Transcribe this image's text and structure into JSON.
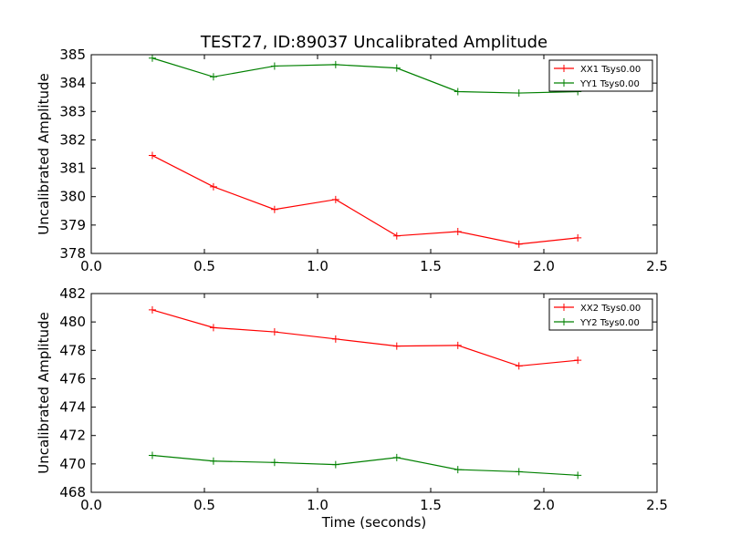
{
  "chart_data": [
    {
      "type": "line",
      "title": "TEST27, ID:89037 Uncalibrated Amplitude",
      "xlabel": "",
      "ylabel": "Uncalibrated Amplitude",
      "xlim": [
        0.0,
        2.5
      ],
      "ylim": [
        378,
        385
      ],
      "xticks": [
        "0.0",
        "0.5",
        "1.0",
        "1.5",
        "2.0",
        "2.5"
      ],
      "yticks": [
        "378",
        "379",
        "380",
        "381",
        "382",
        "383",
        "384",
        "385"
      ],
      "x": [
        0.27,
        0.54,
        0.81,
        1.08,
        1.35,
        1.62,
        1.89,
        2.15
      ],
      "legend_position": "top-right",
      "series": [
        {
          "name": "XX1 Tsys0.00",
          "color": "#ff0000",
          "values": [
            381.45,
            380.35,
            379.55,
            379.9,
            378.62,
            378.77,
            378.33,
            378.55
          ]
        },
        {
          "name": "YY1 Tsys0.00",
          "color": "#008000",
          "values": [
            384.88,
            384.22,
            384.6,
            384.65,
            384.53,
            383.7,
            383.65,
            383.7
          ]
        }
      ]
    },
    {
      "type": "line",
      "title": "",
      "xlabel": "Time (seconds)",
      "ylabel": "Uncalibrated Amplitude",
      "xlim": [
        0.0,
        2.5
      ],
      "ylim": [
        468,
        482
      ],
      "xticks": [
        "0.0",
        "0.5",
        "1.0",
        "1.5",
        "2.0",
        "2.5"
      ],
      "yticks": [
        "468",
        "470",
        "472",
        "474",
        "476",
        "478",
        "480",
        "482"
      ],
      "x": [
        0.27,
        0.54,
        0.81,
        1.08,
        1.35,
        1.62,
        1.89,
        2.15
      ],
      "legend_position": "top-right",
      "series": [
        {
          "name": "XX2 Tsys0.00",
          "color": "#ff0000",
          "values": [
            480.85,
            479.6,
            479.3,
            478.8,
            478.3,
            478.35,
            476.9,
            477.3
          ]
        },
        {
          "name": "YY2 Tsys0.00",
          "color": "#008000",
          "values": [
            470.6,
            470.2,
            470.1,
            469.95,
            470.45,
            469.6,
            469.45,
            469.2
          ]
        }
      ]
    }
  ]
}
